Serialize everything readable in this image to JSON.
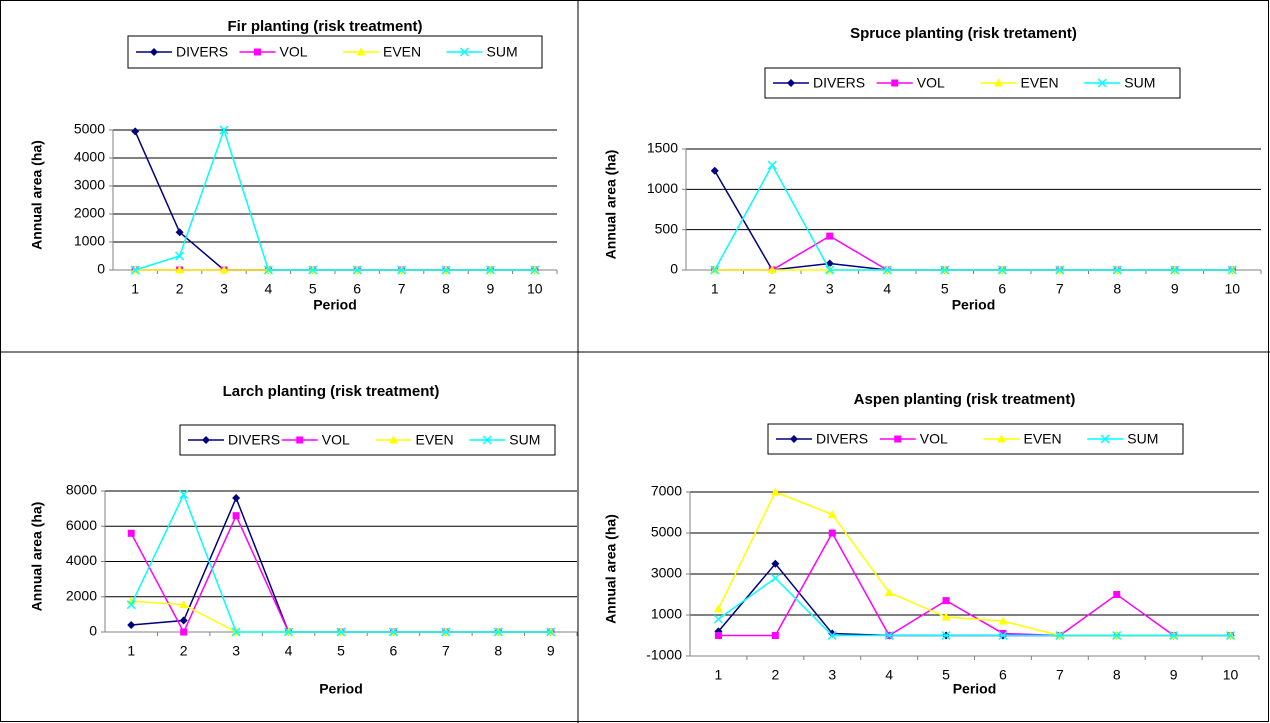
{
  "chart_data": [
    {
      "type": "line",
      "title": "Fir planting (risk treatment)",
      "x_label": "Period",
      "y_label": "Annual area (ha)",
      "categories": [
        "1",
        "2",
        "3",
        "4",
        "5",
        "6",
        "7",
        "8",
        "9",
        "10"
      ],
      "ylim": [
        0,
        5000
      ],
      "yticks": [
        0,
        1000,
        2000,
        3000,
        4000,
        5000
      ],
      "grid": true,
      "legend": "top",
      "series": [
        {
          "name": "DIVERS",
          "color": "#000080",
          "marker": "diamond",
          "values": [
            4950,
            1350,
            0,
            0,
            0,
            0,
            0,
            0,
            0,
            0
          ]
        },
        {
          "name": "VOL",
          "color": "#ff00ff",
          "marker": "square",
          "values": [
            0,
            0,
            0,
            0,
            0,
            0,
            0,
            0,
            0,
            0
          ]
        },
        {
          "name": "EVEN",
          "color": "#ffff00",
          "marker": "triangle",
          "values": [
            0,
            0,
            0,
            0,
            0,
            0,
            0,
            0,
            0,
            0
          ]
        },
        {
          "name": "SUM",
          "color": "#00ffff",
          "marker": "x",
          "values": [
            0,
            500,
            5000,
            0,
            0,
            0,
            0,
            0,
            0,
            0
          ]
        }
      ]
    },
    {
      "type": "line",
      "title": "Spruce planting (risk tretament)",
      "x_label": "Period",
      "y_label": "Annual area (ha)",
      "categories": [
        "1",
        "2",
        "3",
        "4",
        "5",
        "6",
        "7",
        "8",
        "9",
        "10"
      ],
      "ylim": [
        0,
        1500
      ],
      "yticks": [
        0,
        500,
        1000,
        1500
      ],
      "grid": true,
      "legend": "top",
      "series": [
        {
          "name": "DIVERS",
          "color": "#000080",
          "marker": "diamond",
          "values": [
            1230,
            0,
            80,
            0,
            0,
            0,
            0,
            0,
            0,
            0
          ]
        },
        {
          "name": "VOL",
          "color": "#ff00ff",
          "marker": "square",
          "values": [
            0,
            0,
            420,
            0,
            0,
            0,
            0,
            0,
            0,
            0
          ]
        },
        {
          "name": "EVEN",
          "color": "#ffff00",
          "marker": "triangle",
          "values": [
            0,
            0,
            0,
            0,
            0,
            0,
            0,
            0,
            0,
            0
          ]
        },
        {
          "name": "SUM",
          "color": "#00ffff",
          "marker": "x",
          "values": [
            0,
            1300,
            0,
            0,
            0,
            0,
            0,
            0,
            0,
            0
          ]
        }
      ]
    },
    {
      "type": "line",
      "title": "Larch planting (risk treatment)",
      "x_label": "Period",
      "y_label": "Annual area (ha)",
      "categories": [
        "1",
        "2",
        "3",
        "4",
        "5",
        "6",
        "7",
        "8",
        "9"
      ],
      "ylim": [
        0,
        8000
      ],
      "yticks": [
        0,
        2000,
        4000,
        6000,
        8000
      ],
      "grid": true,
      "legend": "top",
      "series": [
        {
          "name": "DIVERS",
          "color": "#000080",
          "marker": "diamond",
          "values": [
            400,
            650,
            7600,
            0,
            0,
            0,
            0,
            0,
            0
          ]
        },
        {
          "name": "VOL",
          "color": "#ff00ff",
          "marker": "square",
          "values": [
            5600,
            0,
            6600,
            0,
            0,
            0,
            0,
            0,
            0
          ]
        },
        {
          "name": "EVEN",
          "color": "#ffff00",
          "marker": "triangle",
          "values": [
            1750,
            1550,
            0,
            0,
            0,
            0,
            0,
            0,
            0
          ]
        },
        {
          "name": "SUM",
          "color": "#00ffff",
          "marker": "x",
          "values": [
            1550,
            7800,
            0,
            0,
            0,
            0,
            0,
            0,
            0
          ]
        }
      ]
    },
    {
      "type": "line",
      "title": "Aspen planting (risk treatment)",
      "x_label": "Period",
      "y_label": "Annual area (ha)",
      "categories": [
        "1",
        "2",
        "3",
        "4",
        "5",
        "6",
        "7",
        "8",
        "9",
        "10"
      ],
      "ylim": [
        -1000,
        7000
      ],
      "yticks": [
        -1000,
        1000,
        3000,
        5000,
        7000
      ],
      "grid": true,
      "legend": "top",
      "series": [
        {
          "name": "DIVERS",
          "color": "#000080",
          "marker": "diamond",
          "values": [
            200,
            3500,
            100,
            0,
            0,
            0,
            0,
            0,
            0,
            0
          ]
        },
        {
          "name": "VOL",
          "color": "#ff00ff",
          "marker": "square",
          "values": [
            0,
            0,
            5000,
            0,
            1700,
            100,
            0,
            2000,
            0,
            0
          ]
        },
        {
          "name": "EVEN",
          "color": "#ffff00",
          "marker": "triangle",
          "values": [
            1300,
            7000,
            5900,
            2100,
            900,
            700,
            0,
            0,
            0,
            0
          ]
        },
        {
          "name": "SUM",
          "color": "#00ffff",
          "marker": "x",
          "values": [
            800,
            2800,
            0,
            0,
            0,
            0,
            0,
            0,
            0,
            0
          ]
        }
      ]
    }
  ]
}
